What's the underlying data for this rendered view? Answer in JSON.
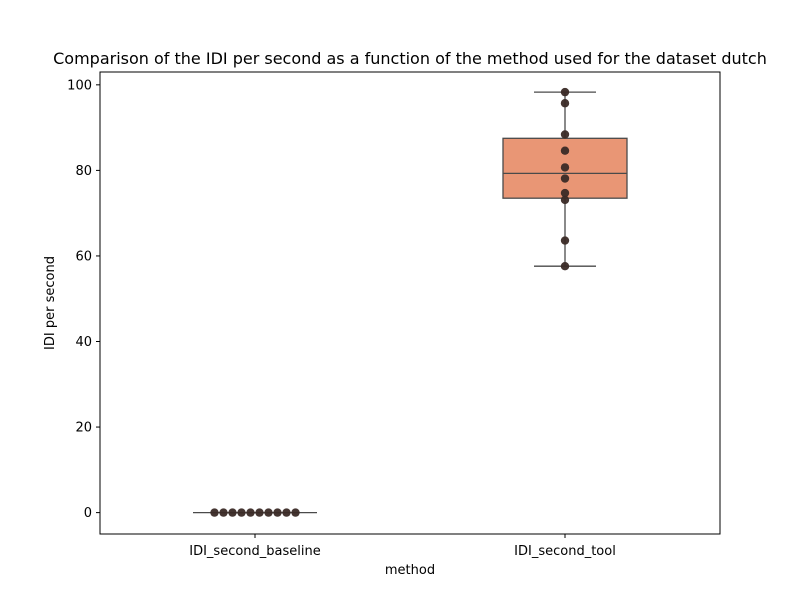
{
  "chart_data": {
    "type": "box",
    "title": "Comparison of the IDI per second as a function of the method used for the dataset dutch",
    "xlabel": "method",
    "ylabel": "IDI per second",
    "categories": [
      "IDI_second_baseline",
      "IDI_second_tool"
    ],
    "ylim": [
      -5,
      103
    ],
    "yticks": [
      0,
      20,
      40,
      60,
      80,
      100
    ],
    "grid": false,
    "colors": {
      "box_fill": "#e99675",
      "box_edge": "#4a4a4a",
      "points": "#3a2a26"
    },
    "boxes": [
      {
        "category": "IDI_second_baseline",
        "min": 0,
        "q1": 0,
        "median": 0,
        "q3": 0,
        "max": 0,
        "points": [
          0,
          0,
          0,
          0,
          0,
          0,
          0,
          0,
          0,
          0
        ]
      },
      {
        "category": "IDI_second_tool",
        "min": 57.6,
        "q1": 73.5,
        "median": 79.3,
        "q3": 87.5,
        "max": 98.3,
        "points": [
          98.3,
          95.7,
          88.4,
          84.6,
          80.7,
          78.1,
          74.7,
          73.1,
          63.6,
          57.6
        ]
      }
    ]
  }
}
